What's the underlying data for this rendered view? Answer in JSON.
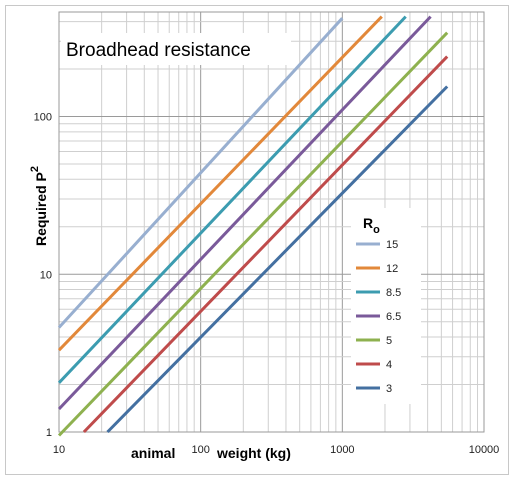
{
  "chart_data": {
    "type": "line",
    "title": "Broadhead resistance",
    "xlabel": "animal weight (kg)",
    "xlabel_words": [
      "animal",
      "weight (kg)"
    ],
    "ylabel": "Required P",
    "ylabel_sup": "2",
    "x_scale": "log",
    "y_scale": "log",
    "xlim": [
      10,
      10000
    ],
    "ylim": [
      1,
      460
    ],
    "x_ticks": [
      10,
      100,
      1000,
      10000
    ],
    "x_tick_labels": [
      "10",
      "100",
      "1000",
      "10000"
    ],
    "y_ticks": [
      1,
      10,
      100
    ],
    "y_tick_labels": [
      "1",
      "10",
      "100"
    ],
    "grid": true,
    "legend_title": "R",
    "legend_title_sub": "o",
    "legend_position": "right",
    "series": [
      {
        "name": "15",
        "color": "#98AFD0",
        "x": [
          10,
          1000
        ],
        "y": [
          4.6,
          420
        ]
      },
      {
        "name": "12",
        "color": "#E2883A",
        "x": [
          10,
          1900
        ],
        "y": [
          3.3,
          430
        ]
      },
      {
        "name": "8.5",
        "color": "#3C9CB0",
        "x": [
          10,
          2800
        ],
        "y": [
          2.05,
          430
        ]
      },
      {
        "name": "6.5",
        "color": "#7A5A9A",
        "x": [
          10,
          4200
        ],
        "y": [
          1.4,
          430
        ]
      },
      {
        "name": "5",
        "color": "#8EB14F",
        "x": [
          10,
          5500
        ],
        "y": [
          0.95,
          340
        ]
      },
      {
        "name": "4",
        "color": "#BF4B4B",
        "x": [
          15,
          5500
        ],
        "y": [
          1,
          240
        ]
      },
      {
        "name": "3",
        "color": "#4470A1",
        "x": [
          22,
          5500
        ],
        "y": [
          1,
          155
        ]
      }
    ]
  }
}
